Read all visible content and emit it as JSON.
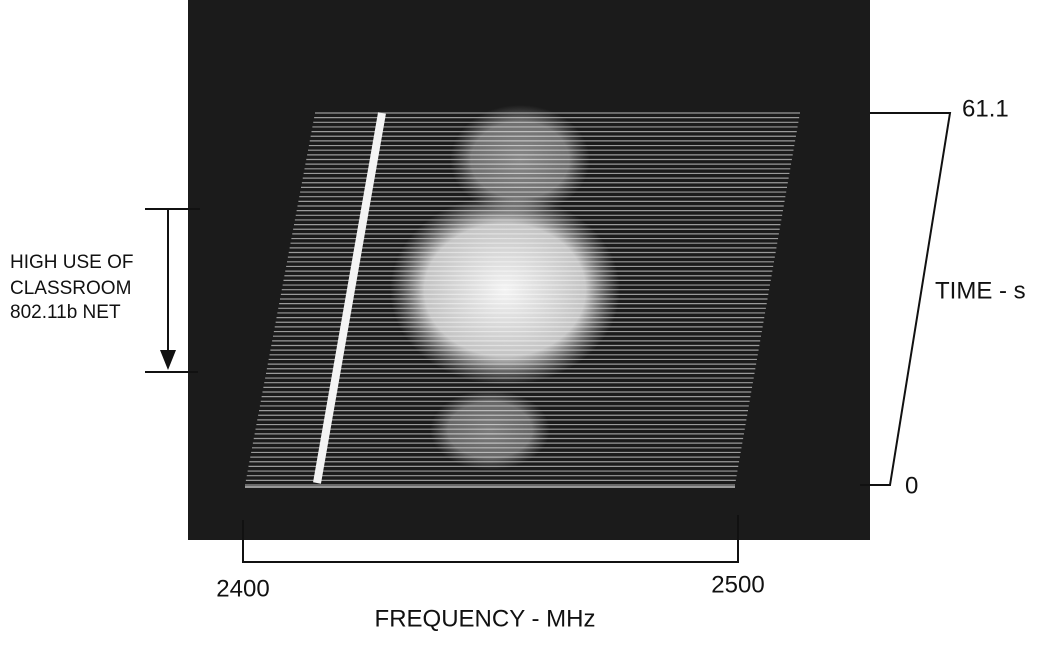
{
  "annotation": {
    "lines": [
      "HIGH USE OF",
      "CLASSROOM",
      "802.11b NET"
    ]
  },
  "time_axis": {
    "label": "TIME - s",
    "top": "61.1",
    "bottom": "0"
  },
  "frequency_axis": {
    "label": "FREQUENCY - MHz",
    "left": "2400",
    "right": "2500"
  }
}
